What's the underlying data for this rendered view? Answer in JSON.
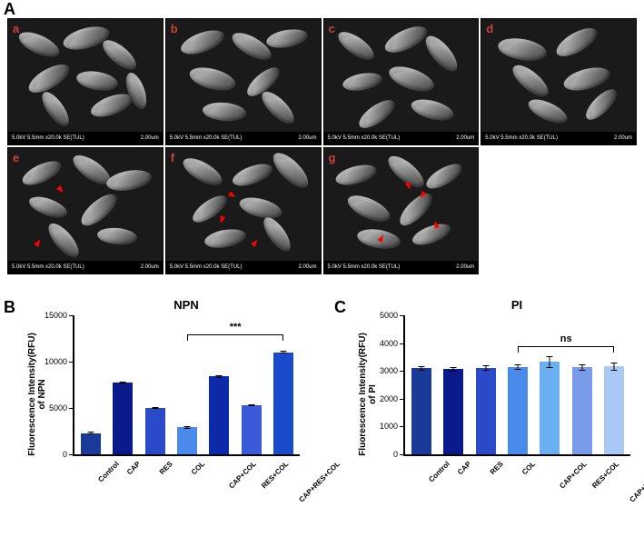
{
  "panel_labels": {
    "A": "A",
    "B": "B",
    "C": "C"
  },
  "sem": {
    "sublabels": [
      "a",
      "b",
      "c",
      "d",
      "e",
      "f",
      "g"
    ],
    "info_left": "5.0kV 5.5mm x20.0k SE(TUL)",
    "info_right": "2.00um",
    "sublabel_color": "#c84040",
    "arrow_color": "#ff0000",
    "arrows_panels": [
      "e",
      "f",
      "g"
    ]
  },
  "chartB": {
    "title": "NPN",
    "ylabel": "Fluorescence Intensity(RFU)\nof NPN",
    "type": "bar",
    "categories": [
      "Control",
      "CAP",
      "RES",
      "COL",
      "CAP+COL",
      "RES+COL",
      "CAP+RES+COL"
    ],
    "values": [
      2300,
      7700,
      5000,
      2900,
      8400,
      5300,
      11000
    ],
    "errors": [
      120,
      180,
      130,
      120,
      130,
      120,
      160
    ],
    "colors": [
      "#1a3a9a",
      "#0a1a8a",
      "#2a4aca",
      "#4a8aea",
      "#0a2aaa",
      "#3a5ada",
      "#use-last"
    ],
    "bar_colors_hex": [
      "#1a3a9a",
      "#0a1a8a",
      "#2a4aca",
      "#4a8aea",
      "#0a2aaa",
      "#3a5ada",
      "#1a4acc"
    ],
    "ylim": [
      0,
      15000
    ],
    "yticks": [
      0,
      5000,
      10000,
      15000
    ],
    "sig": {
      "from": 3,
      "to": 6,
      "label": "***"
    }
  },
  "chartC": {
    "title": "PI",
    "ylabel": "Fluorescence Intensity(RFU)\nof PI",
    "type": "bar",
    "categories": [
      "Control",
      "CAP",
      "RES",
      "COL",
      "CAP+COL",
      "RES+COL",
      "CAP+RES+COL"
    ],
    "values": [
      3100,
      3070,
      3100,
      3130,
      3320,
      3130,
      3160
    ],
    "errors": [
      80,
      80,
      90,
      90,
      220,
      110,
      140
    ],
    "bar_colors_hex": [
      "#1a3a9a",
      "#0a1a8a",
      "#2a4aca",
      "#4a8aea",
      "#6ab0f0",
      "#7a9aea",
      "#aac8f6"
    ],
    "ylim": [
      0,
      5000
    ],
    "yticks": [
      0,
      1000,
      2000,
      3000,
      4000,
      5000
    ],
    "sig": {
      "from": 3,
      "to": 6,
      "label": "ns"
    }
  }
}
